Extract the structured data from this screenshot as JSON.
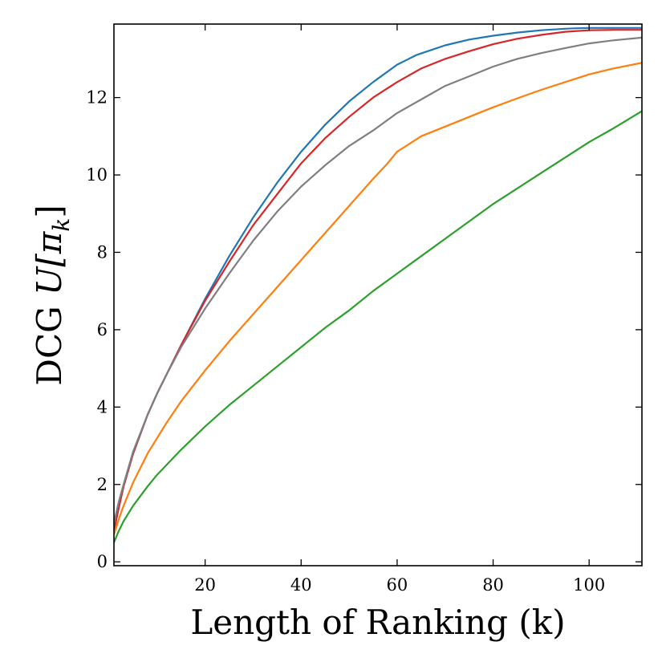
{
  "chart_data": {
    "type": "line",
    "xlabel": "Length of Ranking (k)",
    "ylabel_prefix": "DCG ",
    "ylabel_math": "U[π",
    "ylabel_sub": "k",
    "ylabel_suffix": "]",
    "xlim": [
      1,
      111
    ],
    "ylim": [
      -0.1,
      13.9
    ],
    "xticks": [
      20,
      40,
      60,
      80,
      100
    ],
    "yticks": [
      0,
      2,
      4,
      6,
      8,
      10,
      12
    ],
    "series": [
      {
        "name": "blue",
        "color": "#1f77b4",
        "x": [
          1,
          2,
          3,
          5,
          8,
          10,
          12,
          15,
          20,
          25,
          30,
          35,
          40,
          45,
          50,
          55,
          60,
          64,
          70,
          75,
          80,
          85,
          90,
          95,
          97,
          100,
          105,
          111
        ],
        "y": [
          0.8,
          1.4,
          1.95,
          2.8,
          3.8,
          4.35,
          4.85,
          5.6,
          6.8,
          7.9,
          8.9,
          9.8,
          10.6,
          11.3,
          11.9,
          12.4,
          12.85,
          13.1,
          13.35,
          13.5,
          13.6,
          13.68,
          13.74,
          13.78,
          13.79,
          13.8,
          13.8,
          13.8
        ]
      },
      {
        "name": "red",
        "color": "#d62728",
        "x": [
          1,
          2,
          3,
          5,
          8,
          10,
          12,
          15,
          20,
          25,
          30,
          35,
          40,
          45,
          50,
          55,
          60,
          65,
          70,
          75,
          80,
          85,
          90,
          95,
          100,
          105,
          111
        ],
        "y": [
          0.8,
          1.4,
          1.95,
          2.8,
          3.8,
          4.35,
          4.85,
          5.6,
          6.75,
          7.75,
          8.7,
          9.5,
          10.3,
          10.95,
          11.5,
          12.0,
          12.4,
          12.75,
          13.0,
          13.2,
          13.38,
          13.52,
          13.62,
          13.7,
          13.74,
          13.75,
          13.75
        ]
      },
      {
        "name": "gray",
        "color": "#7f7f7f",
        "x": [
          1,
          2,
          3,
          5,
          8,
          10,
          12,
          15,
          20,
          25,
          30,
          35,
          40,
          45,
          50,
          55,
          60,
          65,
          70,
          75,
          80,
          85,
          90,
          95,
          100,
          105,
          111
        ],
        "y": [
          1.0,
          1.55,
          2.0,
          2.85,
          3.8,
          4.35,
          4.85,
          5.55,
          6.55,
          7.45,
          8.3,
          9.05,
          9.7,
          10.25,
          10.75,
          11.15,
          11.6,
          11.95,
          12.3,
          12.55,
          12.8,
          13.0,
          13.15,
          13.28,
          13.4,
          13.48,
          13.55
        ]
      },
      {
        "name": "orange",
        "color": "#ff7f0e",
        "x": [
          1,
          2,
          3,
          5,
          8,
          10,
          12,
          15,
          20,
          25,
          30,
          35,
          40,
          45,
          50,
          55,
          58,
          60,
          65,
          70,
          75,
          80,
          85,
          90,
          95,
          100,
          105,
          111
        ],
        "y": [
          0.7,
          1.1,
          1.45,
          2.05,
          2.8,
          3.2,
          3.6,
          4.15,
          4.95,
          5.7,
          6.4,
          7.1,
          7.8,
          8.5,
          9.2,
          9.9,
          10.3,
          10.6,
          11.0,
          11.25,
          11.5,
          11.75,
          11.98,
          12.2,
          12.4,
          12.6,
          12.75,
          12.9
        ]
      },
      {
        "name": "green",
        "color": "#2ca02c",
        "x": [
          1,
          2,
          3,
          5,
          8,
          10,
          15,
          20,
          25,
          30,
          35,
          40,
          45,
          50,
          55,
          60,
          65,
          70,
          75,
          80,
          85,
          90,
          95,
          100,
          105,
          111
        ],
        "y": [
          0.5,
          0.8,
          1.05,
          1.45,
          1.95,
          2.25,
          2.9,
          3.5,
          4.05,
          4.55,
          5.05,
          5.55,
          6.05,
          6.5,
          7.0,
          7.45,
          7.9,
          8.35,
          8.8,
          9.25,
          9.65,
          10.05,
          10.45,
          10.85,
          11.2,
          11.65
        ]
      }
    ]
  }
}
